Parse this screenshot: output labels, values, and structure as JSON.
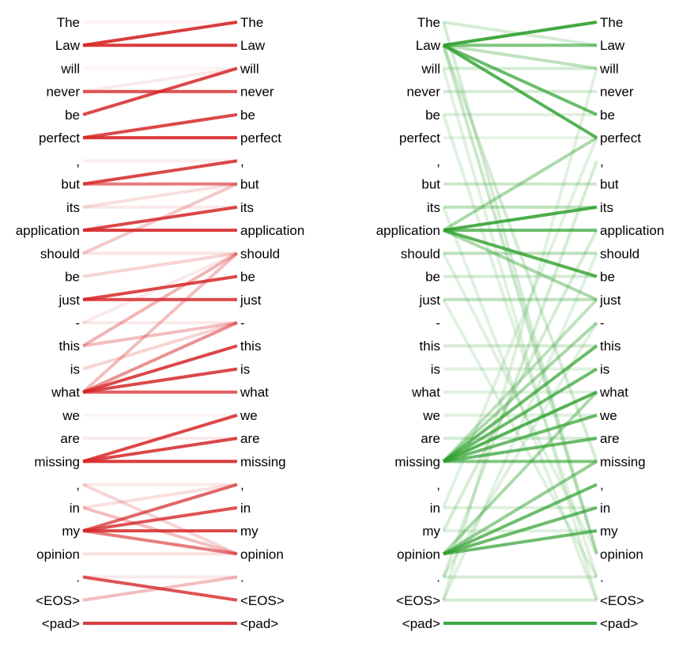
{
  "tokens": [
    "The",
    "Law",
    "will",
    "never",
    "be",
    "perfect",
    ",",
    "but",
    "its",
    "application",
    "should",
    "be",
    "just",
    "-",
    "this",
    "is",
    "what",
    "we",
    "are",
    "missing",
    ",",
    "in",
    "my",
    "opinion",
    ".",
    "<EOS>",
    "<pad>"
  ],
  "panels": [
    {
      "color": "#d62728",
      "edges": [
        [
          1,
          0,
          0.9
        ],
        [
          1,
          1,
          0.9
        ],
        [
          3,
          3,
          0.8
        ],
        [
          4,
          2,
          0.85
        ],
        [
          5,
          4,
          0.85
        ],
        [
          5,
          5,
          0.9
        ],
        [
          7,
          6,
          0.85
        ],
        [
          7,
          7,
          0.6
        ],
        [
          8,
          7,
          0.15
        ],
        [
          8,
          8,
          0.1
        ],
        [
          9,
          8,
          0.85
        ],
        [
          9,
          9,
          0.9
        ],
        [
          10,
          7,
          0.25
        ],
        [
          10,
          10,
          0.12
        ],
        [
          11,
          10,
          0.2
        ],
        [
          12,
          11,
          0.85
        ],
        [
          12,
          12,
          0.85
        ],
        [
          13,
          13,
          0.1
        ],
        [
          13,
          10,
          0.1
        ],
        [
          14,
          13,
          0.3
        ],
        [
          14,
          10,
          0.35
        ],
        [
          15,
          13,
          0.2
        ],
        [
          16,
          14,
          0.85
        ],
        [
          16,
          15,
          0.85
        ],
        [
          16,
          16,
          0.75
        ],
        [
          16,
          13,
          0.5
        ],
        [
          16,
          10,
          0.3
        ],
        [
          17,
          17,
          0.05
        ],
        [
          19,
          17,
          0.85
        ],
        [
          19,
          18,
          0.85
        ],
        [
          19,
          19,
          0.9
        ],
        [
          18,
          18,
          0.1
        ],
        [
          20,
          23,
          0.2
        ],
        [
          20,
          20,
          0.1
        ],
        [
          21,
          23,
          0.3
        ],
        [
          21,
          20,
          0.15
        ],
        [
          22,
          20,
          0.7
        ],
        [
          22,
          21,
          0.8
        ],
        [
          22,
          22,
          0.85
        ],
        [
          22,
          23,
          0.6
        ],
        [
          23,
          23,
          0.15
        ],
        [
          24,
          25,
          0.8
        ],
        [
          25,
          24,
          0.3
        ],
        [
          26,
          26,
          0.9
        ],
        [
          24,
          24,
          0.1
        ],
        [
          2,
          2,
          0.05
        ],
        [
          0,
          0,
          0.05
        ],
        [
          6,
          6,
          0.08
        ],
        [
          3,
          2,
          0.1
        ]
      ]
    },
    {
      "color": "#2ca02c",
      "edges": [
        [
          1,
          0,
          0.9
        ],
        [
          1,
          1,
          0.6
        ],
        [
          1,
          2,
          0.3
        ],
        [
          1,
          4,
          0.7
        ],
        [
          1,
          5,
          0.8
        ],
        [
          0,
          1,
          0.2
        ],
        [
          9,
          8,
          0.85
        ],
        [
          9,
          9,
          0.7
        ],
        [
          9,
          11,
          0.8
        ],
        [
          9,
          12,
          0.4
        ],
        [
          9,
          5,
          0.4
        ],
        [
          19,
          14,
          0.7
        ],
        [
          19,
          15,
          0.7
        ],
        [
          19,
          16,
          0.8
        ],
        [
          19,
          17,
          0.7
        ],
        [
          19,
          18,
          0.7
        ],
        [
          19,
          19,
          0.6
        ],
        [
          19,
          13,
          0.4
        ],
        [
          19,
          12,
          0.3
        ],
        [
          23,
          20,
          0.7
        ],
        [
          23,
          21,
          0.7
        ],
        [
          23,
          22,
          0.7
        ],
        [
          23,
          19,
          0.5
        ],
        [
          23,
          16,
          0.4
        ],
        [
          26,
          26,
          0.9
        ],
        [
          2,
          2,
          0.2
        ],
        [
          3,
          3,
          0.2
        ],
        [
          4,
          4,
          0.15
        ],
        [
          5,
          5,
          0.1
        ],
        [
          7,
          7,
          0.25
        ],
        [
          8,
          8,
          0.3
        ],
        [
          10,
          10,
          0.3
        ],
        [
          11,
          11,
          0.2
        ],
        [
          12,
          12,
          0.3
        ],
        [
          14,
          14,
          0.2
        ],
        [
          15,
          15,
          0.15
        ],
        [
          16,
          16,
          0.15
        ],
        [
          17,
          17,
          0.15
        ],
        [
          18,
          18,
          0.2
        ],
        [
          21,
          21,
          0.15
        ],
        [
          22,
          22,
          0.15
        ],
        [
          24,
          24,
          0.2
        ],
        [
          25,
          25,
          0.2
        ],
        [
          0,
          23,
          0.2
        ],
        [
          1,
          23,
          0.25
        ],
        [
          1,
          19,
          0.2
        ],
        [
          2,
          25,
          0.15
        ],
        [
          4,
          24,
          0.15
        ],
        [
          8,
          25,
          0.15
        ],
        [
          24,
          6,
          0.2
        ],
        [
          25,
          2,
          0.15
        ],
        [
          24,
          13,
          0.15
        ],
        [
          22,
          9,
          0.2
        ],
        [
          21,
          5,
          0.15
        ],
        [
          25,
          10,
          0.15
        ],
        [
          12,
          24,
          0.15
        ],
        [
          10,
          23,
          0.15
        ]
      ]
    }
  ]
}
